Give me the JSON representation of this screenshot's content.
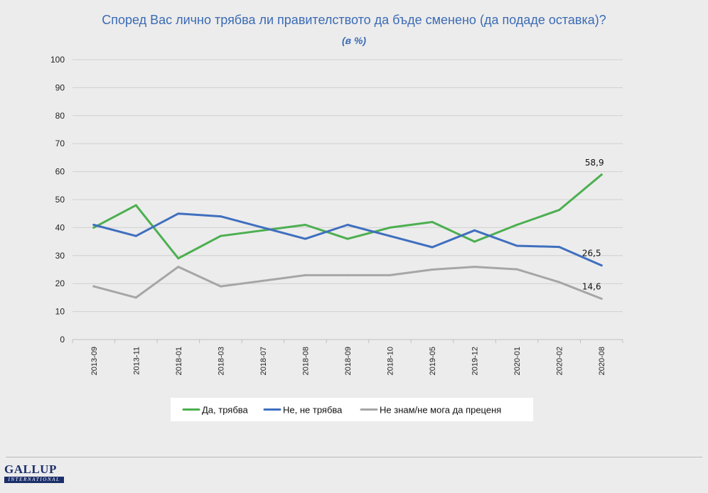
{
  "chart_data": {
    "type": "line",
    "title": "Според Вас лично трябва ли правителството да бъде сменено (да подаде оставка)?",
    "subtitle": "(в %)",
    "categories": [
      "2013-09",
      "2013-11",
      "2018-01",
      "2018-03",
      "2018-07",
      "2018-08",
      "2018-09",
      "2018-10",
      "2019-05",
      "2019-12",
      "2020-01",
      "2020-02",
      "2020-08"
    ],
    "ylim": [
      0,
      100
    ],
    "yticks": [
      "0",
      "10",
      "20",
      "30",
      "40",
      "50",
      "60",
      "70",
      "80",
      "90",
      "100"
    ],
    "grid": true,
    "legend_position": "bottom",
    "series": [
      {
        "name": "Да, трябва",
        "color": "#4caf50",
        "values": [
          40,
          48,
          29,
          37,
          39,
          41,
          36,
          40,
          42,
          35,
          41,
          46.3,
          58.9
        ],
        "last_label": "58,9"
      },
      {
        "name": "Не, не трябва",
        "color": "#3f6fbf",
        "values": [
          41,
          37,
          45,
          44,
          40,
          36,
          41,
          37,
          33,
          39,
          33.5,
          33.1,
          26.5
        ],
        "last_label": "26,5"
      },
      {
        "name": "Не знам/не мога да преценя",
        "color": "#a6a6a6",
        "values": [
          19,
          15,
          26,
          19,
          21,
          23,
          23,
          23,
          25,
          26,
          25.1,
          20.5,
          14.6
        ],
        "last_label": "14,6"
      }
    ]
  },
  "logo": {
    "main": "GALLUP",
    "sub": "INTERNATIONAL"
  },
  "colors": {
    "title": "#3b6bb5",
    "grid": "#d0d0d0",
    "axis": "#bfbfbf"
  }
}
